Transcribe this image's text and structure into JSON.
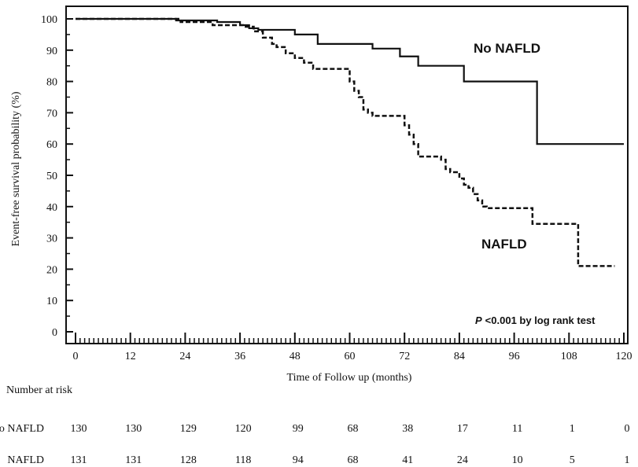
{
  "chart_data": {
    "type": "line",
    "xlabel": "Time of Follow up (months)",
    "ylabel": "Event-free survival probability (%)",
    "xlim": [
      0,
      120
    ],
    "ylim": [
      0,
      100
    ],
    "xticks": [
      0,
      12,
      24,
      36,
      48,
      60,
      72,
      84,
      96,
      108,
      120
    ],
    "yticks": [
      0,
      10,
      20,
      30,
      40,
      50,
      60,
      70,
      80,
      90,
      100
    ],
    "grid": false,
    "style": "step",
    "series": [
      {
        "name": "No NAFLD",
        "line_style": "solid",
        "x": [
          0,
          22,
          31,
          36,
          38,
          40,
          48,
          53,
          57,
          65,
          71,
          75,
          85,
          101,
          120
        ],
        "y": [
          100,
          99.5,
          99,
          98,
          97,
          96.5,
          95,
          92,
          92,
          90.5,
          88,
          85,
          80,
          60,
          60
        ]
      },
      {
        "name": "NAFLD",
        "line_style": "dashed",
        "x": [
          0,
          23,
          30,
          37,
          39,
          41,
          43,
          44,
          46,
          48,
          50,
          52,
          55,
          60,
          61,
          62,
          63,
          64,
          65,
          72,
          73,
          74,
          75,
          76,
          77,
          80,
          81,
          82,
          84,
          85,
          86,
          87,
          88,
          89,
          90,
          100,
          110,
          118
        ],
        "y": [
          100,
          99,
          98,
          97.5,
          96,
          94,
          92,
          91,
          89,
          87.5,
          86,
          84,
          84,
          80,
          77,
          75,
          71,
          70,
          69,
          66,
          63,
          60,
          56,
          56,
          56,
          55,
          52,
          51,
          49,
          47,
          46,
          44,
          42,
          40,
          39.5,
          34.5,
          21,
          21
        ]
      }
    ],
    "series_labels": {
      "no_nafld": "No NAFLD",
      "nafld": "NAFLD"
    },
    "annotation": {
      "italic": "P",
      "text": "<0.001 by log rank test"
    },
    "risk_table": {
      "title": "Number at risk",
      "rows": [
        {
          "label": "No NAFLD",
          "values": [
            130,
            130,
            129,
            120,
            99,
            68,
            38,
            17,
            11,
            1,
            0
          ]
        },
        {
          "label": "NAFLD",
          "values": [
            131,
            131,
            128,
            118,
            94,
            68,
            41,
            24,
            10,
            5,
            1
          ]
        }
      ]
    }
  }
}
